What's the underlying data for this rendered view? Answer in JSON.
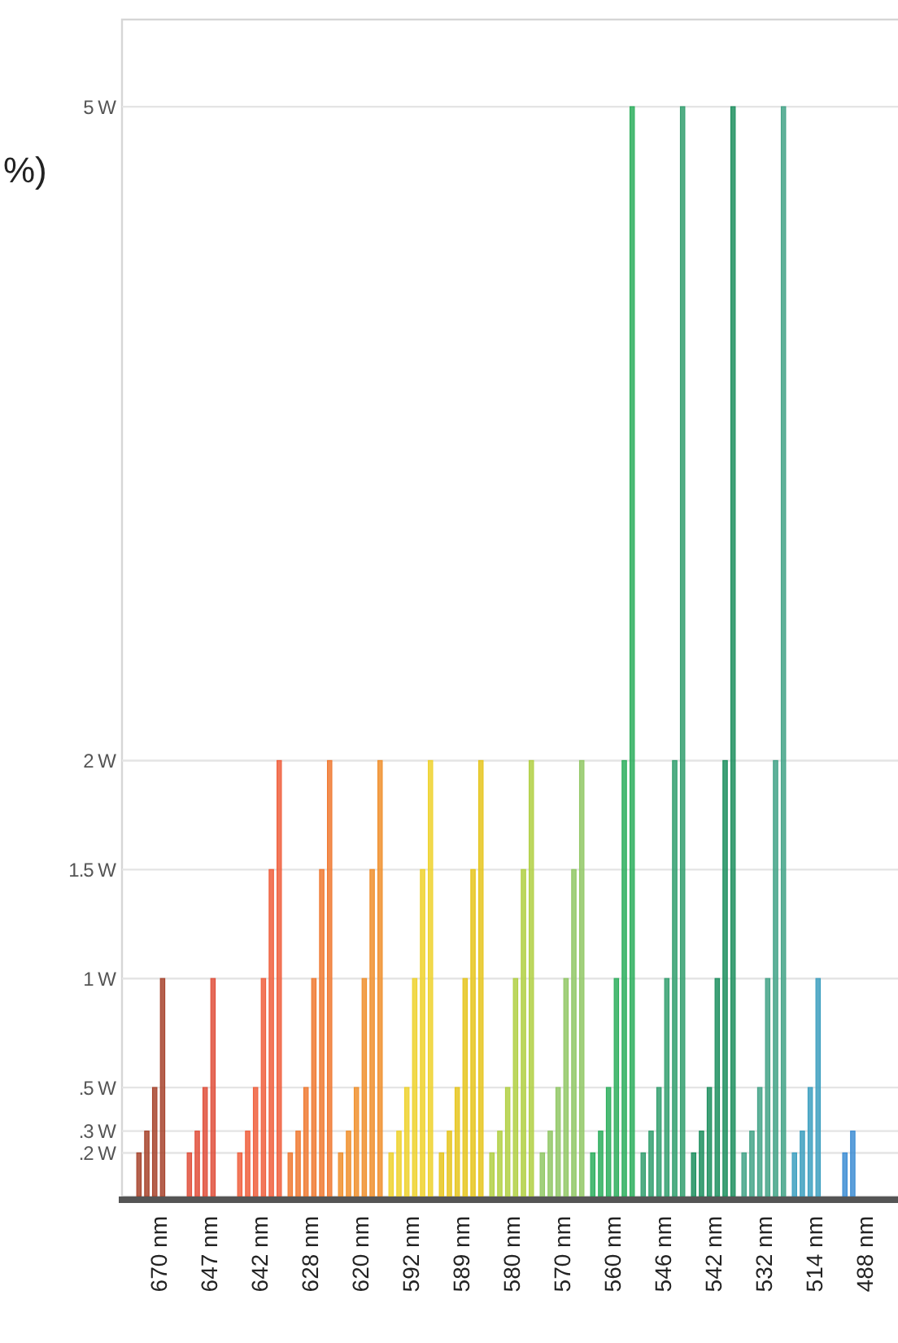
{
  "chart_data": {
    "type": "bar",
    "categories": [
      "670 nm",
      "647 nm",
      "642 nm",
      "628 nm",
      "620 nm",
      "592 nm",
      "589 nm",
      "580 nm",
      "570 nm",
      "560 nm",
      "546 nm",
      "542 nm",
      "532 nm",
      "514 nm",
      "488 nm"
    ],
    "series": [
      {
        "colors": [
          "#a8452e",
          "#e0503c",
          "#f0603e",
          "#f07a32",
          "#f0902e",
          "#eed22e",
          "#e6c61e",
          "#b2d044",
          "#92c866",
          "#2eaf5e",
          "#34a070",
          "#1f9060",
          "#44a488",
          "#3ea0c0",
          "#3f8ed4"
        ],
        "values": [
          0.2,
          0.2,
          0.2,
          0.2,
          0.2,
          0.2,
          0.2,
          0.2,
          0.2,
          0.2,
          0.2,
          0.2,
          0.2,
          0.2,
          0.2
        ]
      },
      {
        "colors": [
          "#a8452e",
          "#e0503c",
          "#f0603e",
          "#f07a32",
          "#f0902e",
          "#eed22e",
          "#e6c61e",
          "#b2d044",
          "#92c866",
          "#2eaf5e",
          "#34a070",
          "#1f9060",
          "#44a488",
          "#3ea0c0",
          "#3f8ed4"
        ],
        "values": [
          0.3,
          0.3,
          0.3,
          0.3,
          0.3,
          0.3,
          0.3,
          0.3,
          0.3,
          0.3,
          0.3,
          0.3,
          0.3,
          0.3,
          0.3
        ]
      },
      {
        "colors": [
          "#a8452e",
          "#e0503c",
          "#f0603e",
          "#f07a32",
          "#f0902e",
          "#eed22e",
          "#e6c61e",
          "#b2d044",
          "#92c866",
          "#2eaf5e",
          "#34a070",
          "#1f9060",
          "#44a488",
          "#3ea0c0",
          null
        ],
        "values": [
          0.5,
          0.5,
          0.5,
          0.5,
          0.5,
          0.5,
          0.5,
          0.5,
          0.5,
          0.5,
          0.5,
          0.5,
          0.5,
          0.5,
          null
        ]
      },
      {
        "colors": [
          "#a8452e",
          "#e0503c",
          "#f0603e",
          "#f07a32",
          "#f0902e",
          "#eed22e",
          "#e6c61e",
          "#b2d044",
          "#92c866",
          "#2eaf5e",
          "#34a070",
          "#1f9060",
          "#44a488",
          "#3ea0c0",
          null
        ],
        "values": [
          1,
          1,
          1,
          1,
          1,
          1,
          1,
          1,
          1,
          1,
          1,
          1,
          1,
          1,
          null
        ]
      },
      {
        "colors": [
          null,
          null,
          "#f0603e",
          "#f07a32",
          "#f0902e",
          "#eed22e",
          "#e6c61e",
          "#b2d044",
          "#92c866",
          "#2eaf5e",
          "#34a070",
          "#1f9060",
          "#44a488",
          null,
          null
        ],
        "values": [
          null,
          null,
          1.5,
          1.5,
          1.5,
          1.5,
          1.5,
          1.5,
          1.5,
          2,
          2,
          2,
          2,
          null,
          null
        ]
      },
      {
        "colors": [
          null,
          null,
          "#f0603e",
          "#f07a32",
          "#f0902e",
          "#eed22e",
          "#e6c61e",
          "#b2d044",
          "#92c866",
          "#2eaf5e",
          "#34a070",
          "#1f9060",
          "#44a488",
          null,
          null
        ],
        "values": [
          null,
          null,
          2,
          2,
          2,
          2,
          2,
          2,
          2,
          5,
          5,
          5,
          5,
          null,
          null
        ]
      }
    ],
    "ylim": [
      0,
      5.4
    ],
    "yticks": [
      {
        "value": 0.2,
        "label": ".2 W"
      },
      {
        "value": 0.3,
        "label": ".3 W"
      },
      {
        "value": 0.5,
        "label": ".5 W"
      },
      {
        "value": 1,
        "label": "1 W"
      },
      {
        "value": 1.5,
        "label": "1.5 W"
      },
      {
        "value": 2,
        "label": "2 W"
      },
      {
        "value": 5,
        "label": "5 W"
      }
    ],
    "grid": "y",
    "annotations": [
      "%)"
    ]
  }
}
